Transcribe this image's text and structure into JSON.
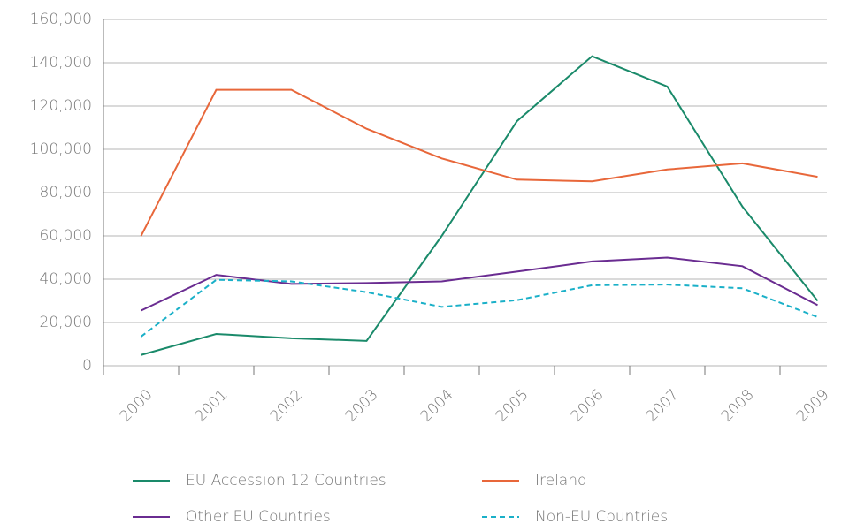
{
  "chart_data": {
    "type": "line",
    "categories": [
      "2000",
      "2001",
      "2002",
      "2003",
      "2004",
      "2005",
      "2006",
      "2007",
      "2008",
      "2009"
    ],
    "series": [
      {
        "name": "EU Accession 12 Countries",
        "color": "#1a8a6a",
        "line_style": "solid",
        "values": [
          5000,
          14700,
          12700,
          11500,
          60000,
          113000,
          143000,
          129000,
          73500,
          30000
        ]
      },
      {
        "name": "Ireland",
        "color": "#e8673a",
        "line_style": "solid",
        "values": [
          60000,
          127500,
          127500,
          109500,
          95800,
          86000,
          85200,
          90700,
          93500,
          87300
        ]
      },
      {
        "name": "Other EU Countries",
        "color": "#6a2c91",
        "line_style": "solid",
        "values": [
          25500,
          42000,
          37800,
          38200,
          39000,
          43500,
          48200,
          50000,
          46000,
          28000
        ]
      },
      {
        "name": "Non-EU Countries",
        "color": "#1ab0c8",
        "line_style": "dashed",
        "values": [
          13500,
          39700,
          39000,
          34000,
          27200,
          30300,
          37200,
          37500,
          35800,
          22500
        ]
      }
    ],
    "ylim": [
      0,
      160000
    ],
    "yticks": [
      0,
      {
        "value": 20000,
        "label": "20,000"
      },
      {
        "value": 40000,
        "label": "40,000"
      },
      {
        "value": 60000,
        "label": "60,000"
      },
      {
        "value": 80000,
        "label": "80,000"
      },
      {
        "value": 100000,
        "label": "100,000"
      },
      {
        "value": 120000,
        "label": "120,000"
      },
      {
        "value": 140000,
        "label": "140,000"
      },
      {
        "value": 160000,
        "label": "160,000"
      }
    ],
    "grid": true,
    "legend_position": "bottom"
  }
}
